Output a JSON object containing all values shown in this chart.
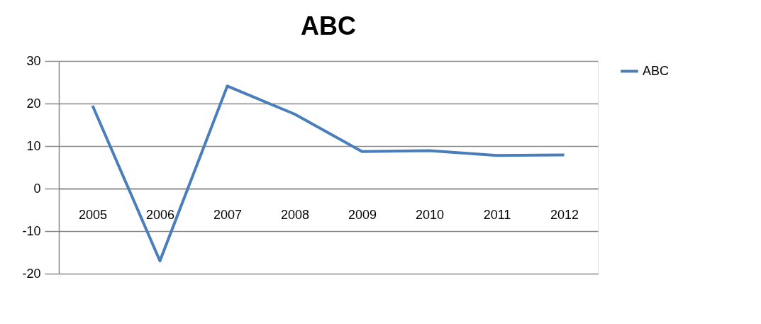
{
  "chart_data": {
    "type": "line",
    "title": "ABC",
    "categories": [
      "2005",
      "2006",
      "2007",
      "2008",
      "2009",
      "2010",
      "2011",
      "2012"
    ],
    "series": [
      {
        "name": "ABC",
        "color": "#4a7ebb",
        "values": [
          19.5,
          -17,
          24.1,
          17.5,
          8.7,
          8.9,
          7.8,
          7.9
        ]
      }
    ],
    "ylim": [
      -20,
      30
    ],
    "yticks": [
      -20,
      -10,
      0,
      10,
      20,
      30
    ],
    "grid": "y",
    "legend": "right",
    "marker": "none",
    "line_style": "solid"
  }
}
